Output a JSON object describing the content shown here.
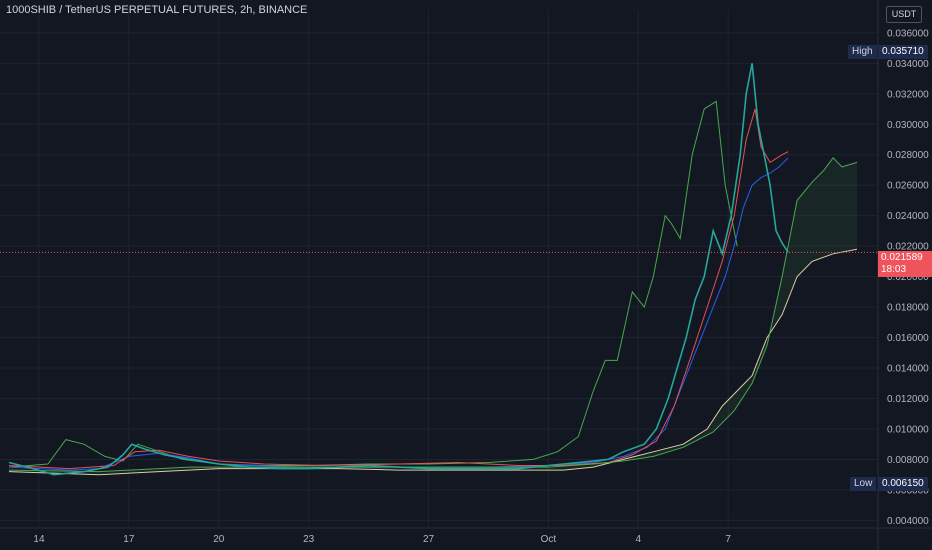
{
  "header": {
    "title": "1000SHIB / TetherUS PERPETUAL FUTURES, 2h, BINANCE",
    "unit": "USDT"
  },
  "markers": {
    "high_label": "High",
    "high_value": "0.035710",
    "low_label": "Low",
    "low_value": "0.006150",
    "last_price": "0.021589",
    "countdown": "18:03"
  },
  "chart_data": {
    "type": "line",
    "title": "1000SHIB / TetherUS PERPETUAL FUTURES, 2h, BINANCE",
    "xlabel": "",
    "ylabel": "",
    "ylim": [
      0.0035,
      0.0375
    ],
    "x_ticks": [
      {
        "label": "14",
        "x": 0
      },
      {
        "label": "17",
        "x": 3
      },
      {
        "label": "20",
        "x": 6
      },
      {
        "label": "23",
        "x": 9
      },
      {
        "label": "27",
        "x": 13
      },
      {
        "label": "Oct",
        "x": 17
      },
      {
        "label": "4",
        "x": 20
      },
      {
        "label": "7",
        "x": 23
      }
    ],
    "y_ticks": [
      "0.004000",
      "0.006000",
      "0.008000",
      "0.010000",
      "0.012000",
      "0.014000",
      "0.016000",
      "0.018000",
      "0.020000",
      "0.022000",
      "0.024000",
      "0.026000",
      "0.028000",
      "0.030000",
      "0.032000",
      "0.034000",
      "0.036000"
    ],
    "grid": true,
    "last_price_line": 0.021589,
    "high": 0.03571,
    "low": 0.00615,
    "price": [
      [
        -1.0,
        0.0078
      ],
      [
        -0.2,
        0.0074
      ],
      [
        0.5,
        0.007
      ],
      [
        1.5,
        0.0072
      ],
      [
        2.3,
        0.0075
      ],
      [
        2.8,
        0.0083
      ],
      [
        3.1,
        0.009
      ],
      [
        3.5,
        0.0087
      ],
      [
        4.2,
        0.0083
      ],
      [
        5.0,
        0.008
      ],
      [
        6.0,
        0.0077
      ],
      [
        7.0,
        0.0075
      ],
      [
        8.0,
        0.0074
      ],
      [
        9.0,
        0.0074
      ],
      [
        10.0,
        0.0075
      ],
      [
        11.0,
        0.0076
      ],
      [
        12.0,
        0.0075
      ],
      [
        13.0,
        0.0074
      ],
      [
        14.0,
        0.0074
      ],
      [
        15.0,
        0.0074
      ],
      [
        16.0,
        0.0074
      ],
      [
        17.0,
        0.0076
      ],
      [
        18.0,
        0.0078
      ],
      [
        19.0,
        0.008
      ],
      [
        19.5,
        0.0085
      ],
      [
        20.2,
        0.009
      ],
      [
        20.6,
        0.01
      ],
      [
        21.0,
        0.012
      ],
      [
        21.3,
        0.014
      ],
      [
        21.6,
        0.016
      ],
      [
        21.9,
        0.0185
      ],
      [
        22.2,
        0.02
      ],
      [
        22.5,
        0.023
      ],
      [
        22.8,
        0.0215
      ],
      [
        23.1,
        0.024
      ],
      [
        23.4,
        0.028
      ],
      [
        23.6,
        0.032
      ],
      [
        23.8,
        0.034
      ],
      [
        24.0,
        0.03
      ],
      [
        24.2,
        0.028
      ],
      [
        24.4,
        0.026
      ],
      [
        24.6,
        0.023
      ],
      [
        24.8,
        0.0222
      ],
      [
        25.0,
        0.0216
      ]
    ],
    "series": [
      {
        "name": "",
        "color": "#4caf50",
        "values": [
          [
            -1.0,
            0.0075
          ],
          [
            0.3,
            0.0077
          ],
          [
            0.9,
            0.0093
          ],
          [
            1.5,
            0.009
          ],
          [
            2.2,
            0.0082
          ],
          [
            2.8,
            0.0079
          ],
          [
            3.3,
            0.009
          ],
          [
            3.9,
            0.0086
          ],
          [
            4.8,
            0.008
          ],
          [
            6.0,
            0.0077
          ],
          [
            7.5,
            0.0076
          ],
          [
            9.0,
            0.0076
          ],
          [
            11.0,
            0.0077
          ],
          [
            13.0,
            0.0077
          ],
          [
            15.0,
            0.0078
          ],
          [
            16.5,
            0.008
          ],
          [
            17.3,
            0.0085
          ],
          [
            18.0,
            0.0095
          ],
          [
            18.5,
            0.0125
          ],
          [
            18.9,
            0.0145
          ],
          [
            19.3,
            0.0145
          ],
          [
            19.8,
            0.019
          ],
          [
            20.2,
            0.018
          ],
          [
            20.5,
            0.02
          ],
          [
            20.9,
            0.024
          ],
          [
            21.1,
            0.0235
          ],
          [
            21.4,
            0.0225
          ],
          [
            21.8,
            0.028
          ],
          [
            22.2,
            0.031
          ],
          [
            22.6,
            0.0315
          ],
          [
            22.9,
            0.026
          ],
          [
            23.3,
            0.022
          ]
        ]
      },
      {
        "name": "",
        "color": "#2962ff",
        "values": [
          [
            -1.0,
            0.0075
          ],
          [
            1.0,
            0.0073
          ],
          [
            2.0,
            0.0074
          ],
          [
            3.0,
            0.0082
          ],
          [
            4.0,
            0.0084
          ],
          [
            5.0,
            0.0081
          ],
          [
            6.0,
            0.0077
          ],
          [
            7.0,
            0.0076
          ],
          [
            9.0,
            0.0075
          ],
          [
            11.0,
            0.0075
          ],
          [
            13.0,
            0.0075
          ],
          [
            15.0,
            0.0075
          ],
          [
            17.0,
            0.0076
          ],
          [
            18.5,
            0.0078
          ],
          [
            19.5,
            0.0082
          ],
          [
            20.3,
            0.0088
          ],
          [
            20.9,
            0.01
          ],
          [
            21.3,
            0.012
          ],
          [
            21.7,
            0.014
          ],
          [
            22.1,
            0.016
          ],
          [
            22.5,
            0.018
          ],
          [
            22.9,
            0.02
          ],
          [
            23.2,
            0.022
          ],
          [
            23.5,
            0.0245
          ],
          [
            23.8,
            0.026
          ],
          [
            24.1,
            0.0265
          ],
          [
            24.4,
            0.0268
          ],
          [
            24.7,
            0.0272
          ],
          [
            25.0,
            0.0278
          ]
        ]
      },
      {
        "name": "",
        "color": "#f0535b",
        "values": [
          [
            -1.0,
            0.0076
          ],
          [
            1.0,
            0.0074
          ],
          [
            2.5,
            0.0076
          ],
          [
            3.2,
            0.0085
          ],
          [
            4.0,
            0.0086
          ],
          [
            5.0,
            0.0082
          ],
          [
            6.0,
            0.0079
          ],
          [
            7.5,
            0.0077
          ],
          [
            9.5,
            0.0076
          ],
          [
            12.0,
            0.0077
          ],
          [
            14.0,
            0.0078
          ],
          [
            16.0,
            0.0076
          ],
          [
            17.5,
            0.0076
          ],
          [
            19.0,
            0.0078
          ],
          [
            19.8,
            0.0083
          ],
          [
            20.6,
            0.0092
          ],
          [
            21.2,
            0.0115
          ],
          [
            21.8,
            0.015
          ],
          [
            22.3,
            0.018
          ],
          [
            22.8,
            0.021
          ],
          [
            23.2,
            0.024
          ],
          [
            23.6,
            0.029
          ],
          [
            23.9,
            0.031
          ],
          [
            24.1,
            0.0285
          ],
          [
            24.4,
            0.0275
          ],
          [
            24.8,
            0.028
          ],
          [
            25.0,
            0.0282
          ]
        ]
      },
      {
        "name": "",
        "color": "#e8d6ae",
        "values": [
          [
            -1.0,
            0.0072
          ],
          [
            2.0,
            0.007
          ],
          [
            4.0,
            0.0072
          ],
          [
            6.0,
            0.0074
          ],
          [
            8.0,
            0.0074
          ],
          [
            10.0,
            0.0074
          ],
          [
            12.0,
            0.0073
          ],
          [
            14.0,
            0.0073
          ],
          [
            16.0,
            0.0073
          ],
          [
            17.5,
            0.0073
          ],
          [
            18.5,
            0.0075
          ],
          [
            19.5,
            0.008
          ],
          [
            20.5,
            0.0085
          ],
          [
            21.5,
            0.009
          ],
          [
            22.3,
            0.01
          ],
          [
            22.8,
            0.0115
          ],
          [
            23.3,
            0.0125
          ],
          [
            23.8,
            0.0135
          ],
          [
            24.3,
            0.016
          ],
          [
            24.8,
            0.0175
          ],
          [
            25.3,
            0.02
          ],
          [
            25.8,
            0.021
          ],
          [
            26.5,
            0.0215
          ],
          [
            27.3,
            0.0218
          ]
        ]
      },
      {
        "name": "",
        "color": "#4caf50",
        "values": [
          [
            -1.0,
            0.0073
          ],
          [
            2.0,
            0.0072
          ],
          [
            5.0,
            0.0075
          ],
          [
            8.0,
            0.0075
          ],
          [
            11.0,
            0.0075
          ],
          [
            14.0,
            0.0075
          ],
          [
            17.0,
            0.0075
          ],
          [
            18.5,
            0.0077
          ],
          [
            19.5,
            0.0079
          ],
          [
            20.5,
            0.0082
          ],
          [
            21.5,
            0.0088
          ],
          [
            22.5,
            0.0098
          ],
          [
            23.2,
            0.0112
          ],
          [
            23.8,
            0.013
          ],
          [
            24.3,
            0.0155
          ],
          [
            24.8,
            0.02
          ],
          [
            25.3,
            0.025
          ],
          [
            25.8,
            0.0262
          ],
          [
            26.2,
            0.027
          ],
          [
            26.5,
            0.0278
          ],
          [
            26.8,
            0.0272
          ],
          [
            27.3,
            0.0275
          ]
        ]
      }
    ]
  }
}
